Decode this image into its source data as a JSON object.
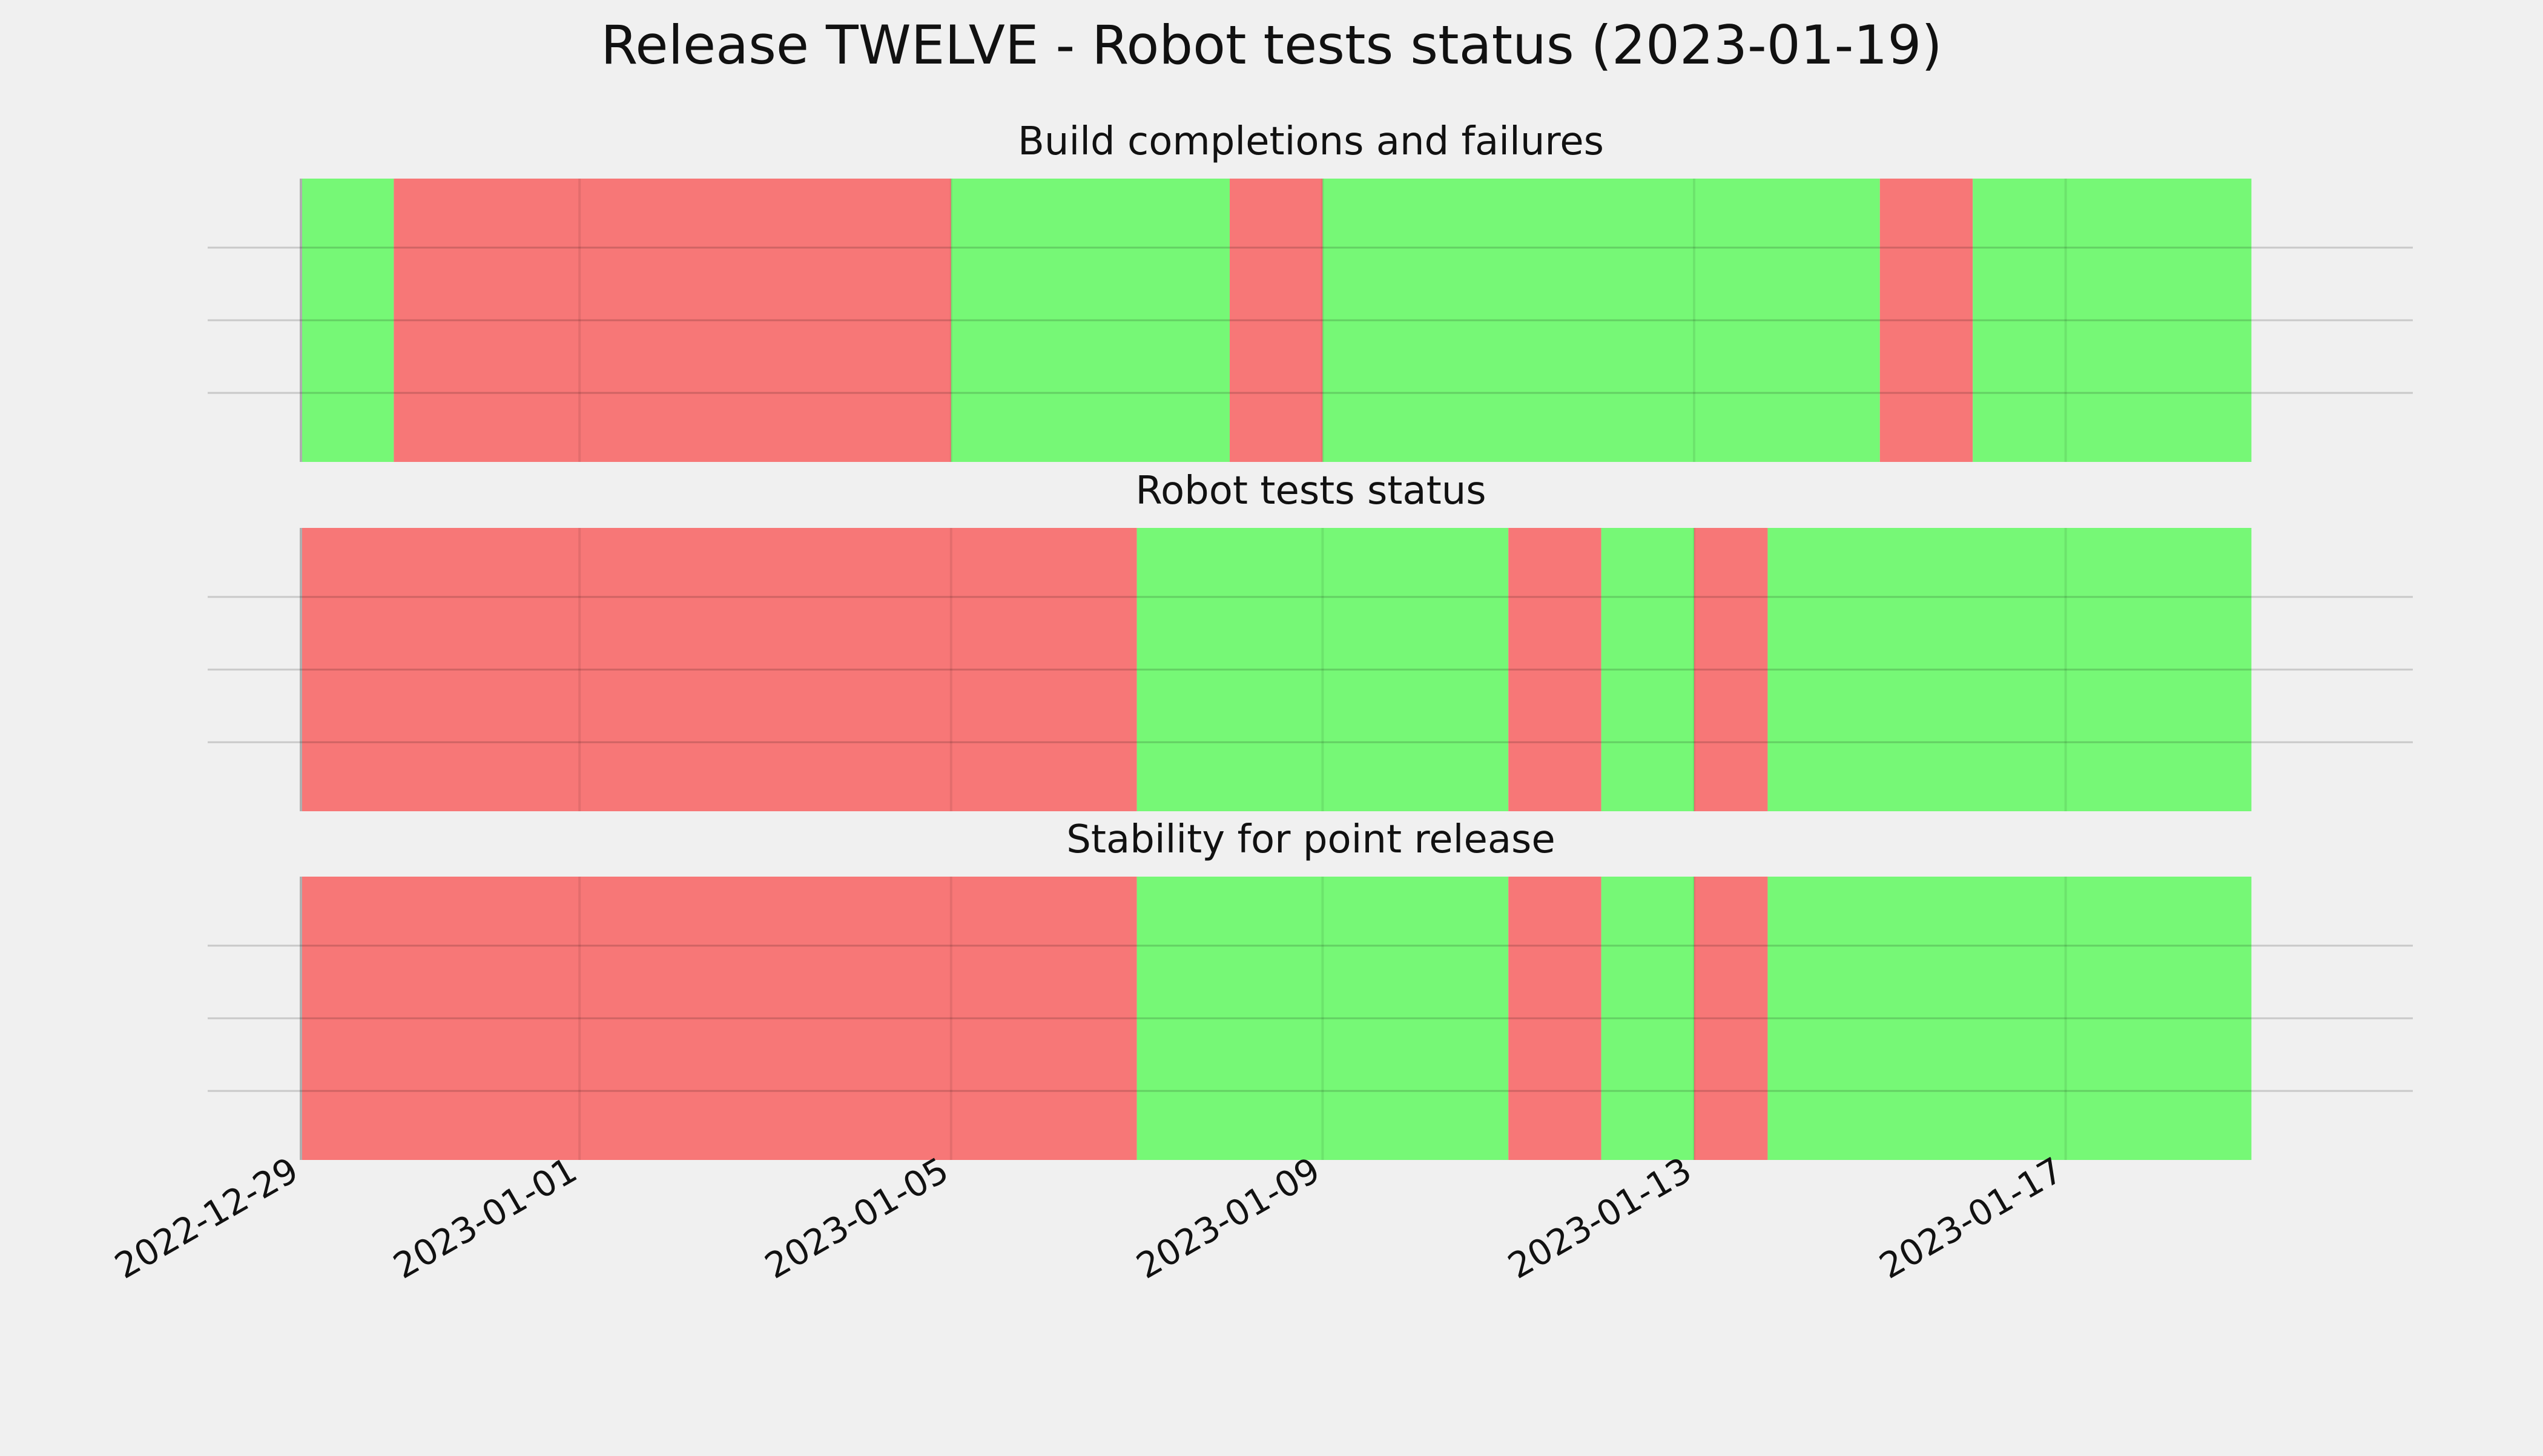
{
  "title": "Release TWELVE - Robot tests status (2023-01-19)",
  "colors": {
    "pass": "#76f876",
    "fail": "#f77777",
    "background": "#f0f0f0",
    "grid": "#cccccc"
  },
  "chart_data": {
    "type": "timeline",
    "x_start": "2022-12-29",
    "x_end": "2023-01-19T00:00",
    "xticks": [
      "2022-12-29",
      "2023-01-01",
      "2023-01-05",
      "2023-01-09",
      "2023-01-13",
      "2023-01-17"
    ],
    "grid": true,
    "panels": [
      {
        "title": "Build completions and failures",
        "segments": [
          {
            "start": "2022-12-29",
            "end": "2022-12-30",
            "status": "pass"
          },
          {
            "start": "2022-12-30",
            "end": "2023-01-05",
            "status": "fail"
          },
          {
            "start": "2023-01-05",
            "end": "2023-01-08",
            "status": "pass"
          },
          {
            "start": "2023-01-08",
            "end": "2023-01-09",
            "status": "fail"
          },
          {
            "start": "2023-01-09",
            "end": "2023-01-15",
            "status": "pass"
          },
          {
            "start": "2023-01-15",
            "end": "2023-01-16",
            "status": "fail"
          },
          {
            "start": "2023-01-16",
            "end": "2023-01-19T00:00",
            "status": "pass"
          }
        ]
      },
      {
        "title": "Robot tests status",
        "segments": [
          {
            "start": "2022-12-29",
            "end": "2023-01-07",
            "status": "fail"
          },
          {
            "start": "2023-01-07",
            "end": "2023-01-11",
            "status": "pass"
          },
          {
            "start": "2023-01-11",
            "end": "2023-01-12",
            "status": "fail"
          },
          {
            "start": "2023-01-12",
            "end": "2023-01-13",
            "status": "pass"
          },
          {
            "start": "2023-01-13",
            "end": "2023-01-13T19:00",
            "status": "fail"
          },
          {
            "start": "2023-01-13T19:00",
            "end": "2023-01-19T00:00",
            "status": "pass"
          }
        ]
      },
      {
        "title": "Stability for point release",
        "segments": [
          {
            "start": "2022-12-29",
            "end": "2023-01-07",
            "status": "fail"
          },
          {
            "start": "2023-01-07",
            "end": "2023-01-11",
            "status": "pass"
          },
          {
            "start": "2023-01-11",
            "end": "2023-01-12",
            "status": "fail"
          },
          {
            "start": "2023-01-12",
            "end": "2023-01-13",
            "status": "pass"
          },
          {
            "start": "2023-01-13",
            "end": "2023-01-13T19:00",
            "status": "fail"
          },
          {
            "start": "2023-01-13T19:00",
            "end": "2023-01-19T00:00",
            "status": "pass"
          }
        ]
      }
    ]
  }
}
